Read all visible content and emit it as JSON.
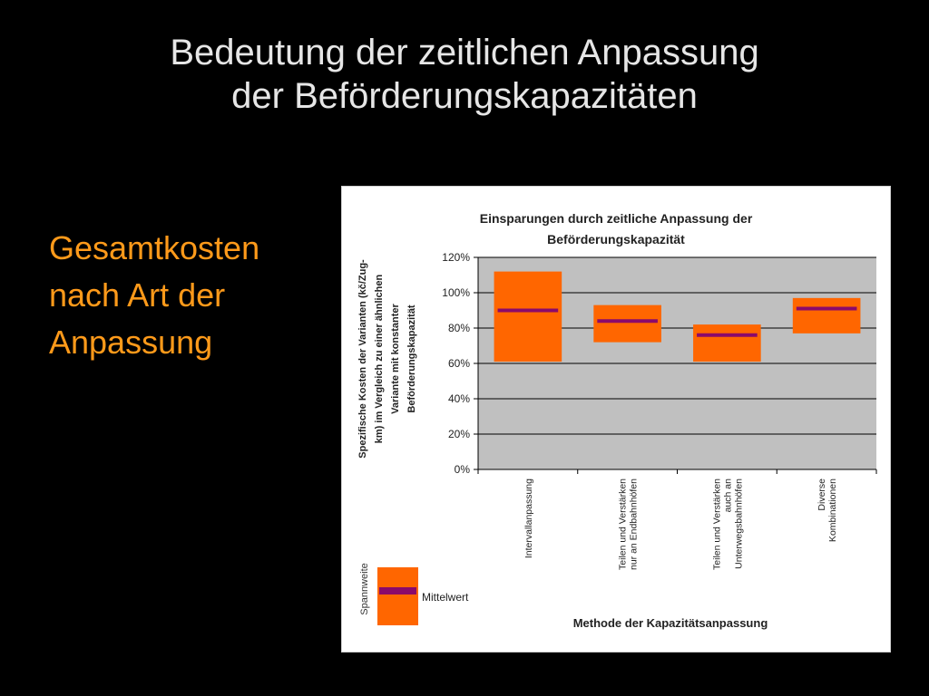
{
  "slide": {
    "title_line1": "Bedeutung der zeitlichen Anpassung",
    "title_line2": "der Beförderungskapazitäten",
    "side_line1": "Gesamtkosten",
    "side_line2": "nach Art der",
    "side_line3": "Anpassung"
  },
  "colors": {
    "background": "#000000",
    "title_text": "#e6e6e6",
    "side_text": "#ff9a1a",
    "plot_area": "#c0c0c0",
    "range_box": "#ff6600",
    "mean_line": "#8b0a6a"
  },
  "chart_data": {
    "type": "bar",
    "subtype": "range-with-mean",
    "title_line1": "Einsparungen durch zeitliche Anpassung der",
    "title_line2": "Beförderungskapazität",
    "xlabel": "Methode der Kapazitätsanpassung",
    "ylabel_lines": [
      "Spezifische Kosten der Varianten (kč/Zug-",
      "km) im Vergleich zu einer ähnlichen",
      "Variante mit konstanter",
      "Beförderungskapazität"
    ],
    "ylim": [
      0,
      1.2
    ],
    "yticks": [
      0,
      0.2,
      0.4,
      0.6,
      0.8,
      1.0,
      1.2
    ],
    "ytick_labels": [
      "0%",
      "20%",
      "40%",
      "60%",
      "80%",
      "100%",
      "120%"
    ],
    "grid": true,
    "categories": [
      [
        "Intervallanpassung"
      ],
      [
        "Teilen und Verstärken",
        "nur an Endbahnhöfen"
      ],
      [
        "Teilen und Verstärken",
        "auch an",
        "Unterwegsbahnhöfen"
      ],
      [
        "Diverse",
        "Kombinationen"
      ]
    ],
    "series": [
      {
        "name": "Spannweite",
        "low": [
          0.61,
          0.72,
          0.61,
          0.77
        ],
        "high": [
          1.12,
          0.93,
          0.82,
          0.97
        ]
      },
      {
        "name": "Mittelwert",
        "values": [
          0.9,
          0.84,
          0.76,
          0.91
        ]
      }
    ],
    "legend": {
      "position": "bottom-left",
      "range_label": "Spannweite",
      "mean_label": "Mittelwert"
    }
  }
}
